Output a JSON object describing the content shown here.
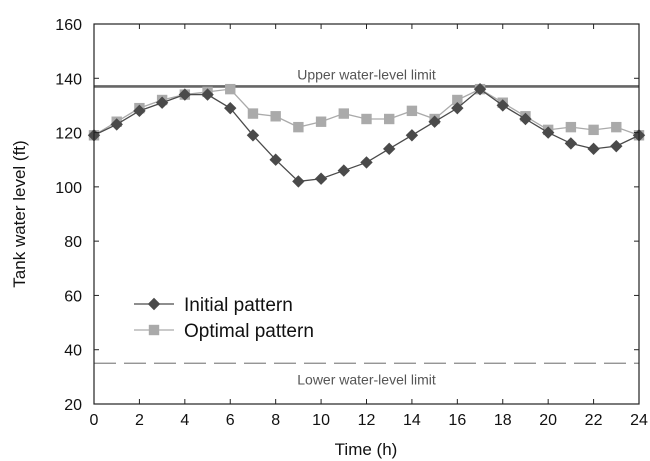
{
  "chart_data": {
    "type": "line",
    "xlabel": "Time (h)",
    "ylabel": "Tank water level (ft)",
    "xlim": [
      0,
      24
    ],
    "ylim": [
      20,
      160
    ],
    "xticks": [
      0,
      2,
      4,
      6,
      8,
      10,
      12,
      14,
      16,
      18,
      20,
      22,
      24
    ],
    "yticks": [
      20,
      40,
      60,
      80,
      100,
      120,
      140,
      160
    ],
    "grid": false,
    "legend_position": "lower-left",
    "x": [
      0,
      1,
      2,
      3,
      4,
      5,
      6,
      7,
      8,
      9,
      10,
      11,
      12,
      13,
      14,
      15,
      16,
      17,
      18,
      19,
      20,
      21,
      22,
      23,
      24
    ],
    "series": [
      {
        "name": "Initial pattern",
        "marker": "diamond",
        "color": "#4a4a4a",
        "values": [
          119,
          123,
          128,
          131,
          134,
          134,
          129,
          119,
          110,
          102,
          103,
          106,
          109,
          114,
          119,
          124,
          129,
          136,
          130,
          125,
          120,
          116,
          114,
          115,
          119
        ]
      },
      {
        "name": "Optimal pattern",
        "marker": "square",
        "color": "#aaaaaa",
        "values": [
          119,
          124,
          129,
          132,
          134,
          135,
          136,
          127,
          126,
          122,
          124,
          127,
          125,
          125,
          128,
          125,
          132,
          136,
          131,
          126,
          121,
          122,
          121,
          122,
          119
        ]
      }
    ],
    "reference_lines": [
      {
        "y": 137,
        "label": "Upper water-level limit",
        "style": "solid",
        "color": "#666666"
      },
      {
        "y": 35,
        "label": "Lower water-level limit",
        "style": "dashed",
        "color": "#888888"
      }
    ]
  }
}
